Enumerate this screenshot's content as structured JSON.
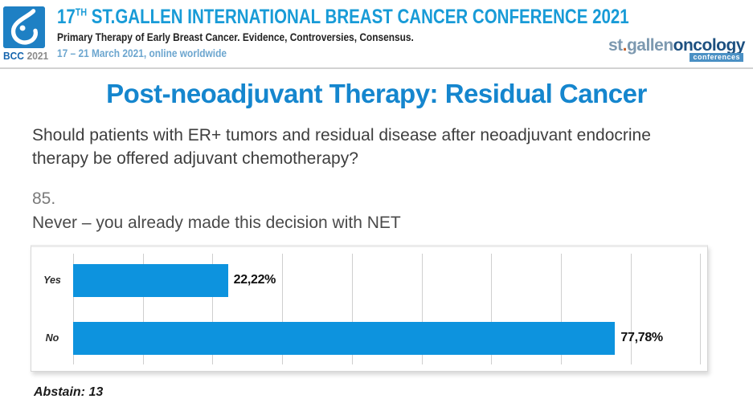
{
  "header": {
    "badge": {
      "bold": "BCC",
      "year": "2021"
    },
    "title_prefix": "17",
    "title_sup": "TH",
    "title_rest": " ST.GALLEN INTERNATIONAL BREAST CANCER CONFERENCE 2021",
    "subtitle": "Primary Therapy of Early Breast Cancer. Evidence, Controversies, Consensus.",
    "dates": "17 – 21 March 2021, online worldwide",
    "brand": {
      "st1": "st",
      "dot": ".",
      "st2": "gallen",
      "onco": "oncology",
      "conf": "conferences"
    }
  },
  "slide": {
    "title": "Post-neoadjuvant Therapy: Residual Cancer",
    "question": "Should patients with ER+ tumors and residual disease after neoadjuvant endocrine therapy be offered adjuvant chemotherapy?",
    "item_number": "85.",
    "statement": "Never – you already made this decision with NET",
    "abstain": "Abstain: 13"
  },
  "chart_data": {
    "type": "bar",
    "orientation": "horizontal",
    "title": "",
    "categories": [
      "Yes",
      "No"
    ],
    "values": [
      22.22,
      77.78
    ],
    "value_labels": [
      "22,22%",
      "77,78%"
    ],
    "abstain_count": 13,
    "bar_color": "#0D93DE",
    "grid": true,
    "grid_step": 10,
    "axis_max": 91,
    "legend": "none"
  }
}
